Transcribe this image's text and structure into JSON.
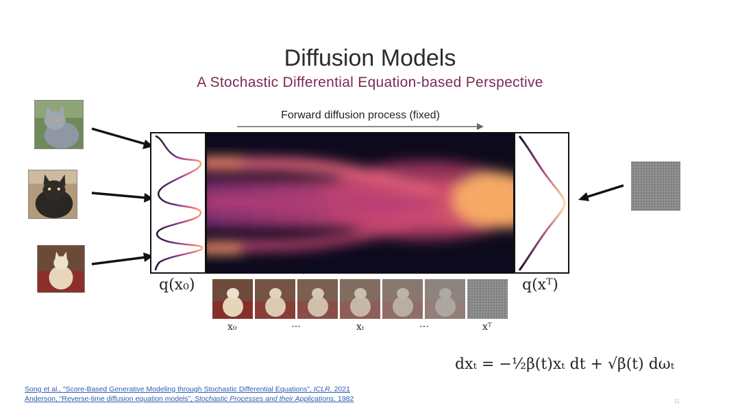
{
  "title": "Diffusion Models",
  "subtitle": "A Stochastic Differential Equation-based Perspective",
  "forward_label": "Forward diffusion process (fixed)",
  "dist_left_label": "q(x₀)",
  "dist_right_label": "q(xᵀ)",
  "sequence_labels": [
    "x₀",
    "…",
    "xₜ",
    "…",
    "xᵀ"
  ],
  "sde_equation": "dxₜ = −½β(t)xₜ dt + √β(t) dωₜ",
  "references": [
    {
      "authors": "Song et al., “Score-Based Generative Modeling through Stochastic Differential Equations”,",
      "venue": "ICLR,",
      "year": "2021"
    },
    {
      "authors": "Anderson, “Reverse-time diffusion equation models”,",
      "venue": "Stochastic Processes and their Applications,",
      "year": "1982"
    }
  ],
  "page_number": "11",
  "colors": {
    "title": "#2b2b2b",
    "subtitle": "#7a2a55",
    "reference_link": "#2a5db0",
    "heatmap_low": "#0d0a1e",
    "heatmap_high": "#f5a760"
  },
  "icons": [
    "cat-image",
    "noise-image",
    "arrow"
  ]
}
